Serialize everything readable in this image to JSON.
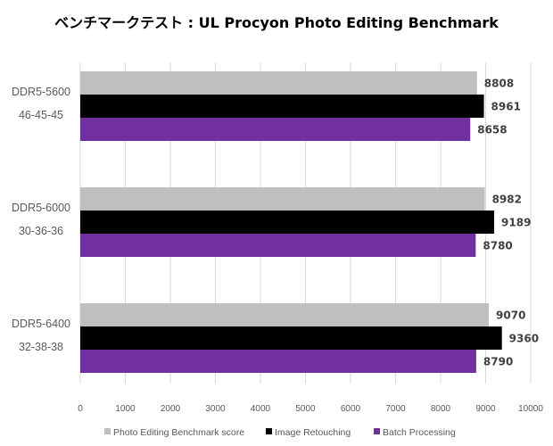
{
  "chart_data": {
    "type": "bar",
    "orientation": "horizontal",
    "title": "ベンチマークテスト : UL Procyon Photo Editing Benchmark",
    "categories": [
      [
        "DDR5-5600",
        "46-45-45"
      ],
      [
        "DDR5-6000",
        "30-36-36"
      ],
      [
        "DDR5-6400",
        "32-38-38"
      ]
    ],
    "series": [
      {
        "name": "Photo Editing Benchmark score",
        "color": "#bfbfbf",
        "values": [
          8808,
          8982,
          9070
        ]
      },
      {
        "name": "Image Retouching",
        "color": "#000000",
        "values": [
          8961,
          9189,
          9360
        ]
      },
      {
        "name": "Batch Processing",
        "color": "#7030a0",
        "values": [
          8658,
          8780,
          8790
        ]
      }
    ],
    "xlim": [
      0,
      10000
    ],
    "xticks": [
      0,
      1000,
      2000,
      3000,
      4000,
      5000,
      6000,
      7000,
      8000,
      9000,
      10000
    ],
    "grid": true,
    "legend": "bottom"
  }
}
